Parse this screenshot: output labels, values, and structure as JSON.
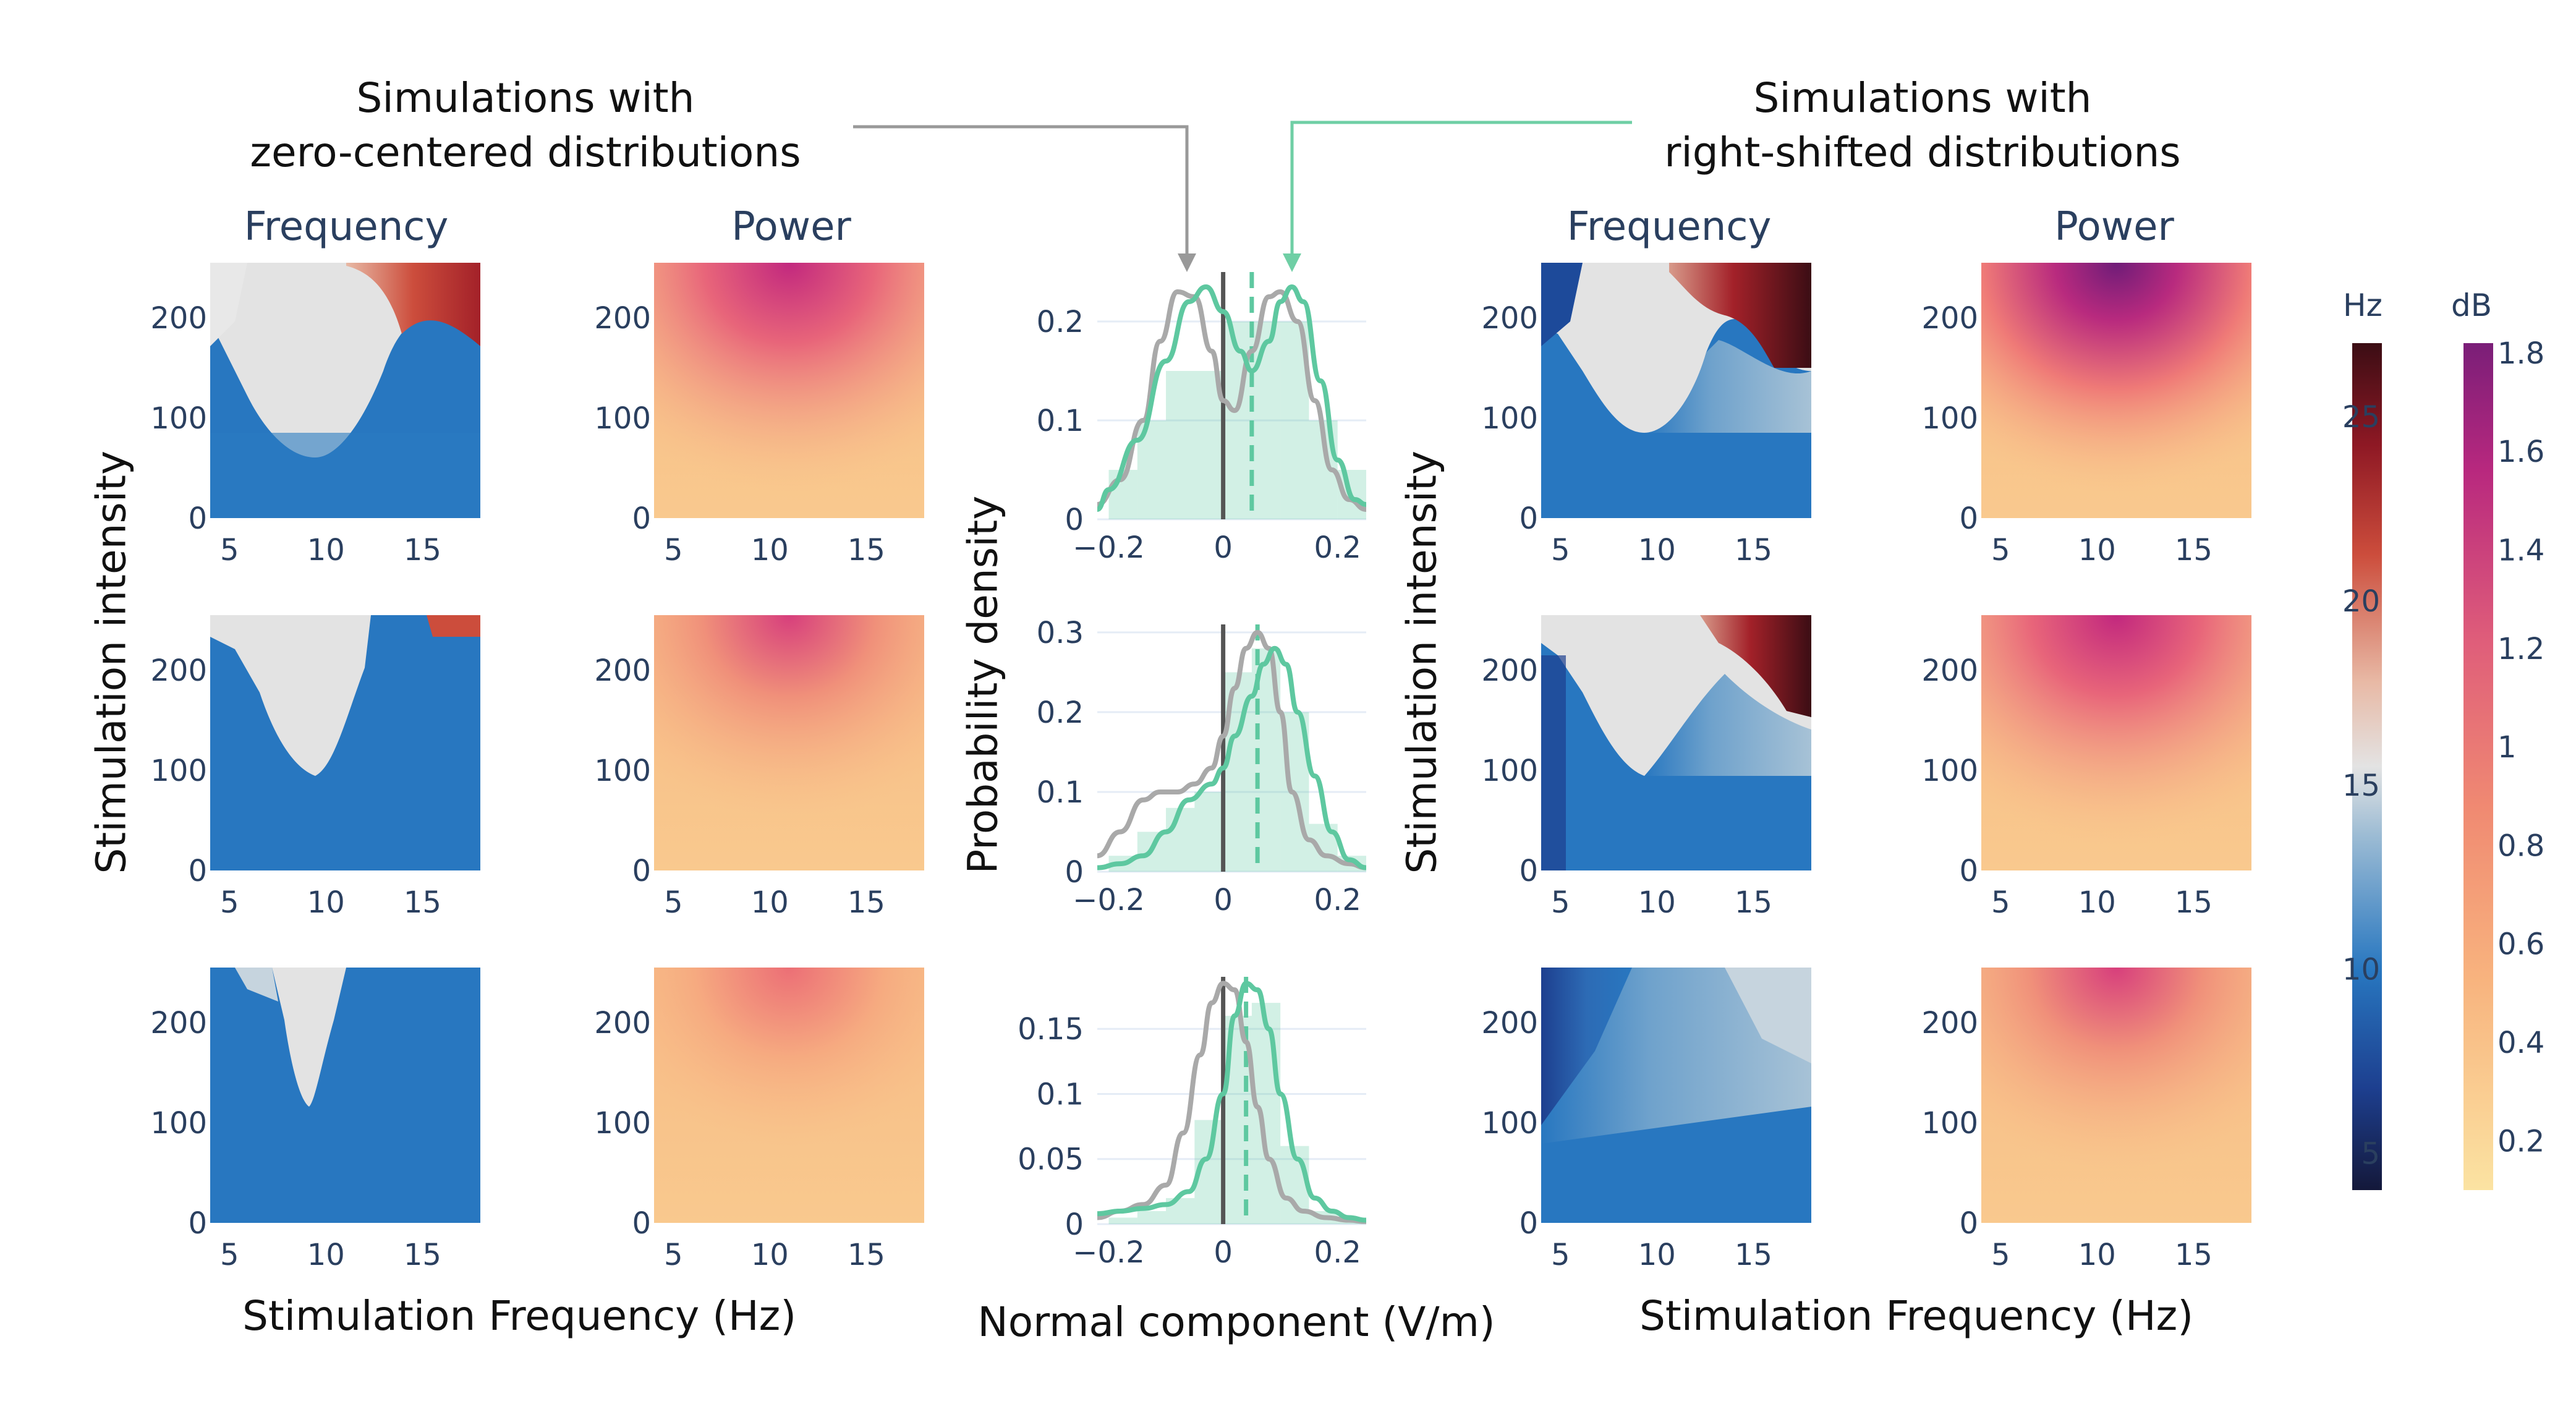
{
  "annotations": {
    "left": [
      "Simulations with",
      "zero-centered distributions"
    ],
    "right": [
      "Simulations with",
      "right-shifted distributions"
    ]
  },
  "column_titles": {
    "left_freq": "Frequency",
    "left_power": "Power",
    "right_freq": "Frequency",
    "right_power": "Power"
  },
  "axis_labels": {
    "y_left": "Stimulation intensity",
    "y_middle": "Probability density",
    "y_right": "Stimulation intensity",
    "x_left": "Stimulation Frequency (Hz)",
    "x_middle": "Normal component (V/m)",
    "x_right": "Stimulation Frequency (Hz)"
  },
  "colors": {
    "zero_centered": "#a9a9a9",
    "right_shifted": "#5ec8a0",
    "annotation_gray": "#999999",
    "annotation_green": "#6fcfa5",
    "tick_text": "#2a3f5f"
  },
  "chart_data": [
    {
      "type": "heatmap",
      "group": "zero-centered",
      "quantity": "Frequency",
      "rows": 3,
      "x_ticks": [
        5,
        10,
        15
      ],
      "y_ticks": [
        0,
        100,
        200
      ],
      "xlim": [
        4,
        18
      ],
      "ylim": [
        0,
        255
      ],
      "colorbar": "Hz"
    },
    {
      "type": "heatmap",
      "group": "zero-centered",
      "quantity": "Power",
      "rows": 3,
      "x_ticks": [
        5,
        10,
        15
      ],
      "y_ticks": [
        0,
        100,
        200
      ],
      "xlim": [
        4,
        18
      ],
      "ylim": [
        0,
        255
      ],
      "colorbar": "dB"
    },
    {
      "type": "heatmap",
      "group": "right-shifted",
      "quantity": "Frequency",
      "rows": 3,
      "x_ticks": [
        5,
        10,
        15
      ],
      "y_ticks": [
        0,
        100,
        200
      ],
      "xlim": [
        4,
        18
      ],
      "ylim": [
        0,
        255
      ],
      "colorbar": "Hz"
    },
    {
      "type": "heatmap",
      "group": "right-shifted",
      "quantity": "Power",
      "rows": 3,
      "x_ticks": [
        5,
        10,
        15
      ],
      "y_ticks": [
        0,
        100,
        200
      ],
      "xlim": [
        4,
        18
      ],
      "ylim": [
        0,
        255
      ],
      "colorbar": "dB"
    },
    {
      "type": "line",
      "row": 1,
      "xlim": [
        -0.22,
        0.25
      ],
      "ylim": [
        0,
        0.25
      ],
      "x_ticks": [
        "−0.2",
        "0",
        "0.2"
      ],
      "y_ticks": [
        "0",
        "0.1",
        "0.2"
      ],
      "y_tick_values": [
        0,
        0.1,
        0.2
      ],
      "series": [
        {
          "x": [
            -0.22,
            -0.18,
            -0.14,
            -0.11,
            -0.08,
            -0.05,
            -0.02,
            0.0,
            0.02,
            0.05,
            0.08,
            0.1,
            0.13,
            0.16,
            0.19,
            0.22,
            0.25
          ],
          "y": [
            0.015,
            0.04,
            0.1,
            0.18,
            0.23,
            0.225,
            0.17,
            0.12,
            0.11,
            0.17,
            0.225,
            0.23,
            0.2,
            0.12,
            0.05,
            0.02,
            0.01
          ],
          "color": "#a9a9a9"
        },
        {
          "x": [
            -0.25,
            -0.2,
            -0.15,
            -0.1,
            -0.06,
            -0.03,
            0.0,
            0.03,
            0.05,
            0.08,
            0.1,
            0.12,
            0.14,
            0.17,
            0.2,
            0.23,
            0.25
          ],
          "y": [
            0.01,
            0.03,
            0.08,
            0.16,
            0.22,
            0.235,
            0.21,
            0.17,
            0.15,
            0.18,
            0.22,
            0.235,
            0.22,
            0.14,
            0.06,
            0.02,
            0.015
          ],
          "color": "#5ec8a0"
        }
      ],
      "vlines": [
        {
          "x": 0.0,
          "color": "#555555",
          "dash": false
        },
        {
          "x": 0.05,
          "color": "#5ec8a0",
          "dash": true
        }
      ],
      "bars": {
        "edges": [
          -0.2,
          -0.15,
          -0.1,
          -0.05,
          0.0,
          0.05,
          0.1,
          0.15,
          0.2,
          0.25
        ],
        "values": [
          0.05,
          0.1,
          0.15,
          0.15,
          0.2,
          0.2,
          0.2,
          0.1,
          0.05
        ]
      }
    },
    {
      "type": "line",
      "row": 2,
      "xlim": [
        -0.22,
        0.25
      ],
      "ylim": [
        0,
        0.31
      ],
      "x_ticks": [
        "−0.2",
        "0",
        "0.2"
      ],
      "y_ticks": [
        "0",
        "0.1",
        "0.2",
        "0.3"
      ],
      "y_tick_values": [
        0,
        0.1,
        0.2,
        0.3
      ],
      "series": [
        {
          "x": [
            -0.22,
            -0.18,
            -0.14,
            -0.11,
            -0.08,
            -0.05,
            -0.02,
            0.0,
            0.02,
            0.04,
            0.06,
            0.08,
            0.1,
            0.12,
            0.15,
            0.18,
            0.22,
            0.25
          ],
          "y": [
            0.02,
            0.05,
            0.09,
            0.1,
            0.1,
            0.11,
            0.13,
            0.17,
            0.23,
            0.28,
            0.3,
            0.28,
            0.2,
            0.1,
            0.04,
            0.02,
            0.01,
            0.005
          ],
          "color": "#a9a9a9"
        },
        {
          "x": [
            -0.22,
            -0.18,
            -0.14,
            -0.1,
            -0.06,
            -0.02,
            0.0,
            0.02,
            0.05,
            0.07,
            0.09,
            0.11,
            0.13,
            0.16,
            0.19,
            0.22,
            0.25
          ],
          "y": [
            0.005,
            0.01,
            0.02,
            0.05,
            0.09,
            0.11,
            0.13,
            0.17,
            0.22,
            0.26,
            0.28,
            0.26,
            0.2,
            0.12,
            0.05,
            0.015,
            0.005
          ],
          "color": "#5ec8a0"
        }
      ],
      "vlines": [
        {
          "x": 0.0,
          "color": "#555555",
          "dash": false
        },
        {
          "x": 0.06,
          "color": "#5ec8a0",
          "dash": true
        }
      ],
      "bars": {
        "edges": [
          -0.2,
          -0.15,
          -0.1,
          -0.05,
          0.0,
          0.05,
          0.1,
          0.15,
          0.2,
          0.25
        ],
        "values": [
          0.02,
          0.05,
          0.08,
          0.1,
          0.25,
          0.28,
          0.2,
          0.06,
          0.02
        ]
      }
    },
    {
      "type": "line",
      "row": 3,
      "xlim": [
        -0.22,
        0.25
      ],
      "ylim": [
        0,
        0.19
      ],
      "x_ticks": [
        "−0.2",
        "0",
        "0.2"
      ],
      "y_ticks": [
        "0",
        "0.05",
        "0.1",
        "0.15"
      ],
      "y_tick_values": [
        0,
        0.05,
        0.1,
        0.15
      ],
      "series": [
        {
          "x": [
            -0.22,
            -0.18,
            -0.14,
            -0.1,
            -0.07,
            -0.04,
            -0.02,
            0.0,
            0.02,
            0.04,
            0.06,
            0.08,
            0.11,
            0.14,
            0.18,
            0.22,
            0.25
          ],
          "y": [
            0.005,
            0.01,
            0.015,
            0.03,
            0.07,
            0.13,
            0.17,
            0.185,
            0.18,
            0.14,
            0.09,
            0.05,
            0.02,
            0.01,
            0.005,
            0.003,
            0.002
          ],
          "color": "#a9a9a9"
        },
        {
          "x": [
            -0.22,
            -0.18,
            -0.14,
            -0.1,
            -0.06,
            -0.03,
            0.0,
            0.02,
            0.04,
            0.06,
            0.08,
            0.1,
            0.13,
            0.16,
            0.19,
            0.22,
            0.25
          ],
          "y": [
            0.008,
            0.01,
            0.012,
            0.015,
            0.025,
            0.05,
            0.1,
            0.16,
            0.185,
            0.18,
            0.15,
            0.1,
            0.05,
            0.02,
            0.01,
            0.005,
            0.003
          ],
          "color": "#5ec8a0"
        }
      ],
      "vlines": [
        {
          "x": 0.0,
          "color": "#555555",
          "dash": false
        },
        {
          "x": 0.04,
          "color": "#5ec8a0",
          "dash": true
        }
      ],
      "bars": {
        "edges": [
          -0.2,
          -0.15,
          -0.1,
          -0.05,
          0.0,
          0.05,
          0.1,
          0.15,
          0.2,
          0.25
        ],
        "values": [
          0.005,
          0.01,
          0.02,
          0.08,
          0.16,
          0.17,
          0.06,
          0.01,
          0.005
        ]
      }
    }
  ],
  "colorbars": {
    "hz": {
      "title": "Hz",
      "ticks": [
        "5",
        "10",
        "15",
        "20",
        "25"
      ],
      "tick_values": [
        5,
        10,
        15,
        20,
        25
      ],
      "range": [
        4,
        27
      ]
    },
    "db": {
      "title": "dB",
      "ticks": [
        "0.2",
        "0.4",
        "0.6",
        "0.8",
        "1",
        "1.2",
        "1.4",
        "1.6",
        "1.8"
      ],
      "tick_values": [
        0.2,
        0.4,
        0.6,
        0.8,
        1.0,
        1.2,
        1.4,
        1.6,
        1.8
      ],
      "range": [
        0.1,
        1.82
      ]
    }
  }
}
